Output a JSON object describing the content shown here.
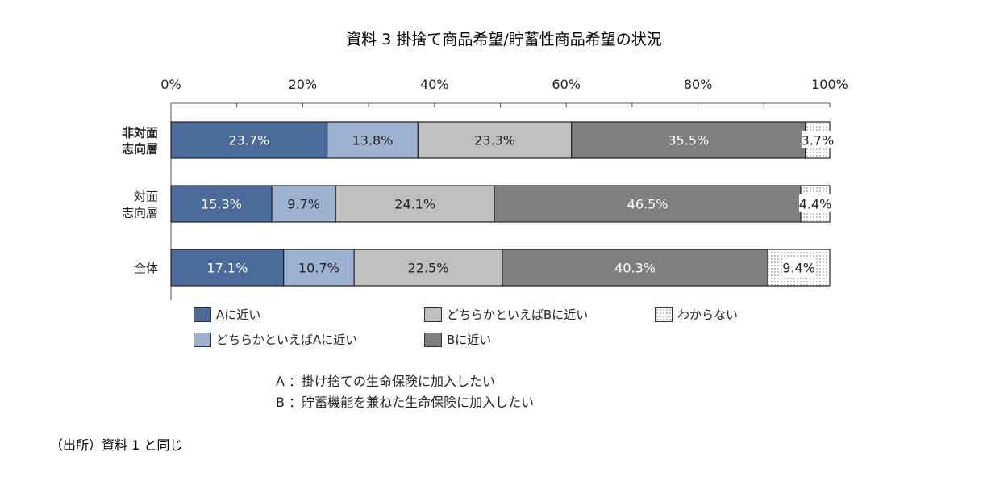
{
  "chart_data": {
    "type": "bar",
    "orientation": "horizontal",
    "stacked": true,
    "title": "資料 3 掛捨て商品希望/貯蓄性商品希望の状況",
    "categories": [
      "非対面\n志向層",
      "対面\n志向層",
      "全体"
    ],
    "category_bold": [
      true,
      false,
      false
    ],
    "xlim": [
      0,
      100
    ],
    "xticks": [
      "0%",
      "20%",
      "40%",
      "60%",
      "80%",
      "100%"
    ],
    "grid": false,
    "legend_position": "bottom",
    "series": [
      {
        "name": "Aに近い",
        "values": [
          23.7,
          15.3,
          17.1
        ],
        "labels": [
          "23.7%",
          "15.3%",
          "17.1%"
        ],
        "color": "#4a6a9a",
        "text_color": "#ffffff"
      },
      {
        "name": "どちらかといえばAに近い",
        "values": [
          13.8,
          9.7,
          10.7
        ],
        "labels": [
          "13.8%",
          "9.7%",
          "10.7%"
        ],
        "color": "#9db1d1",
        "text_color": "#222222"
      },
      {
        "name": "どちらかといえばBに近い",
        "values": [
          23.3,
          24.1,
          22.5
        ],
        "labels": [
          "23.3%",
          "24.1%",
          "22.5%"
        ],
        "color": "#bfbfbf",
        "text_color": "#222222"
      },
      {
        "name": "Bに近い",
        "values": [
          35.5,
          46.5,
          40.3
        ],
        "labels": [
          "35.5%",
          "46.5%",
          "40.3%"
        ],
        "color": "#7f7f7f",
        "text_color": "#ffffff"
      },
      {
        "name": "わからない",
        "values": [
          3.7,
          4.4,
          9.4
        ],
        "labels": [
          "3.7%",
          "4.4%",
          "9.4%"
        ],
        "color": "#ffffff",
        "pattern": "dotted",
        "text_color": "#222222"
      }
    ]
  },
  "notes": [
    "A ：掛け捨ての生命保険に加入したい",
    "B ：貯蓄機能を兼ねた生命保険に加入したい"
  ],
  "source": "（出所）資料 1 と同じ"
}
